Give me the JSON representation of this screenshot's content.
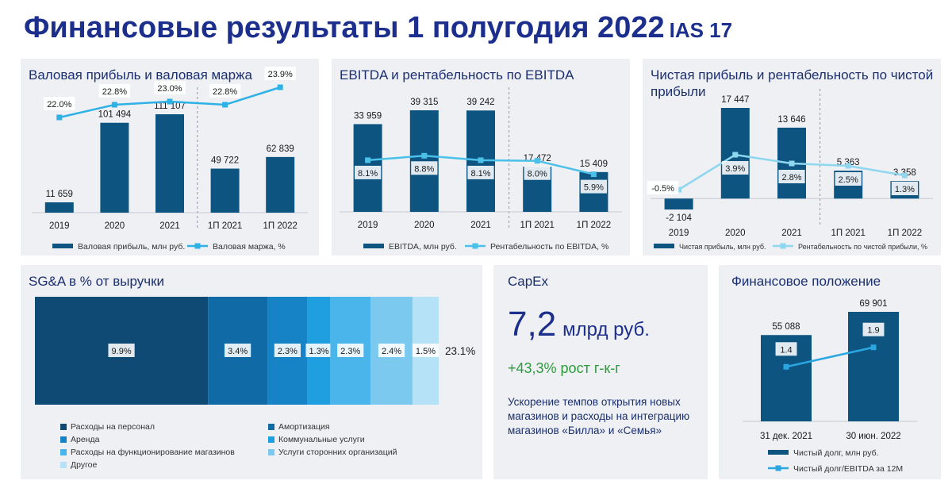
{
  "header": {
    "title": "Финансовые результаты 1 полугодия 2022",
    "suffix": "IAS 17"
  },
  "colors": {
    "bar": "#0d5580",
    "line_gp": "#2eb2e6",
    "line_ebitda": "#4bc0e8",
    "line_np": "#8fd6ef",
    "title": "#1d2f8c",
    "growth": "#2e9a3c"
  },
  "panels": {
    "gp": {
      "title": "Валовая прибыль и валовая маржа"
    },
    "ebitda": {
      "title": "EBITDA и рентабельность по EBITDA"
    },
    "np": {
      "title": "Чистая прибыль и рентабельность по чистой прибыли"
    },
    "sga": {
      "title": "SG&A в % от выручки"
    },
    "capex": {
      "title": "CapEx",
      "value": "7,2",
      "unit": "млрд руб.",
      "growth": "+43,3% рост г-к-г",
      "description": "Ускорение темпов открытия новых магазинов и расходы на интеграцию магазинов «Билла» и «Семья»"
    },
    "fin": {
      "title": "Финансовое положение"
    }
  },
  "chart_data": [
    {
      "id": "gp",
      "type": "bar",
      "categories": [
        "2019",
        "2020",
        "2021",
        "1П 2021",
        "1П 2022"
      ],
      "bar_values": [
        11659,
        101494,
        111107,
        49722,
        62839
      ],
      "bar_labels": [
        "11 659",
        "101 494",
        "111 107",
        "49 722",
        "62 839"
      ],
      "line_values": [
        22.0,
        22.8,
        23.0,
        22.8,
        23.9
      ],
      "line_labels": [
        "22.0%",
        "22.8%",
        "23.0%",
        "22.8%",
        "23.9%"
      ],
      "bar_ylim": [
        0,
        111107
      ],
      "line_ylim": [
        16,
        24
      ],
      "legend": [
        "Валовая прибыль, млн руб.",
        "Валовая маржа, %"
      ]
    },
    {
      "id": "ebitda",
      "type": "bar",
      "categories": [
        "2019",
        "2020",
        "2021",
        "1П 2021",
        "1П 2022"
      ],
      "bar_values": [
        33959,
        39315,
        39242,
        17472,
        15409
      ],
      "bar_labels": [
        "33 959",
        "39 315",
        "39 242",
        "17 472",
        "15 409"
      ],
      "line_values": [
        8.1,
        8.8,
        8.1,
        8.0,
        5.9
      ],
      "line_labels": [
        "8.1%",
        "8.8%",
        "8.1%",
        "8.0%",
        "5.9%"
      ],
      "bar_ylim": [
        0,
        39315
      ],
      "line_ylim": [
        0,
        28
      ],
      "legend": [
        "EBITDA, млн руб.",
        "Рентабельность по EBITDA, %"
      ]
    },
    {
      "id": "np",
      "type": "bar",
      "categories": [
        "2019",
        "2020",
        "2021",
        "1П 2021",
        "1П 2022"
      ],
      "bar_values": [
        -2104,
        17447,
        13646,
        5363,
        3358
      ],
      "bar_labels": [
        "-2 104",
        "17 447",
        "13 646",
        "5 363",
        "3 358"
      ],
      "line_values": [
        -0.5,
        3.9,
        2.8,
        2.5,
        1.3
      ],
      "line_labels": [
        "-0.5%",
        "3.9%",
        "2.8%",
        "2.5%",
        "1.3%"
      ],
      "bar_ylim": [
        -2104,
        17447
      ],
      "line_ylim": [
        -3,
        20
      ],
      "legend": [
        "Чистая прибыль, млн руб.",
        "Рентабельность по чистой прибыли, %"
      ]
    },
    {
      "id": "sga",
      "type": "bar",
      "segments": [
        {
          "label": "Расходы на персонал",
          "value": 9.9,
          "text": "9.9%",
          "color": "#0e4a73"
        },
        {
          "label": "Амортизация",
          "value": 3.4,
          "text": "3.4%",
          "color": "#0f6aa6"
        },
        {
          "label": "Аренда",
          "value": 2.3,
          "text": "2.3%",
          "color": "#1683c6"
        },
        {
          "label": "Коммунальные услуги",
          "value": 1.3,
          "text": "1.3%",
          "color": "#1f9ee0"
        },
        {
          "label": "Расходы на функционирование магазинов",
          "value": 2.3,
          "text": "2.3%",
          "color": "#4ab5ea"
        },
        {
          "label": "Услуги сторонних организаций",
          "value": 2.4,
          "text": "2.4%",
          "color": "#7cc9f0"
        },
        {
          "label": "Другое",
          "value": 1.5,
          "text": "1.5%",
          "color": "#b5e2f7"
        }
      ],
      "total": "23.1%"
    },
    {
      "id": "fin",
      "type": "bar",
      "categories": [
        "31 дек. 2021",
        "30 июн. 2022"
      ],
      "bar_values": [
        55088,
        69901
      ],
      "bar_labels": [
        "55 088",
        "69 901"
      ],
      "line_values": [
        1.4,
        1.9
      ],
      "line_labels": [
        "1.4",
        "1.9"
      ],
      "bar_ylim": [
        0,
        69901
      ],
      "line_ylim": [
        0,
        2.2
      ],
      "legend": [
        "Чистый долг, млн руб.",
        "Чистый долг/EBITDA за 12M"
      ]
    }
  ]
}
